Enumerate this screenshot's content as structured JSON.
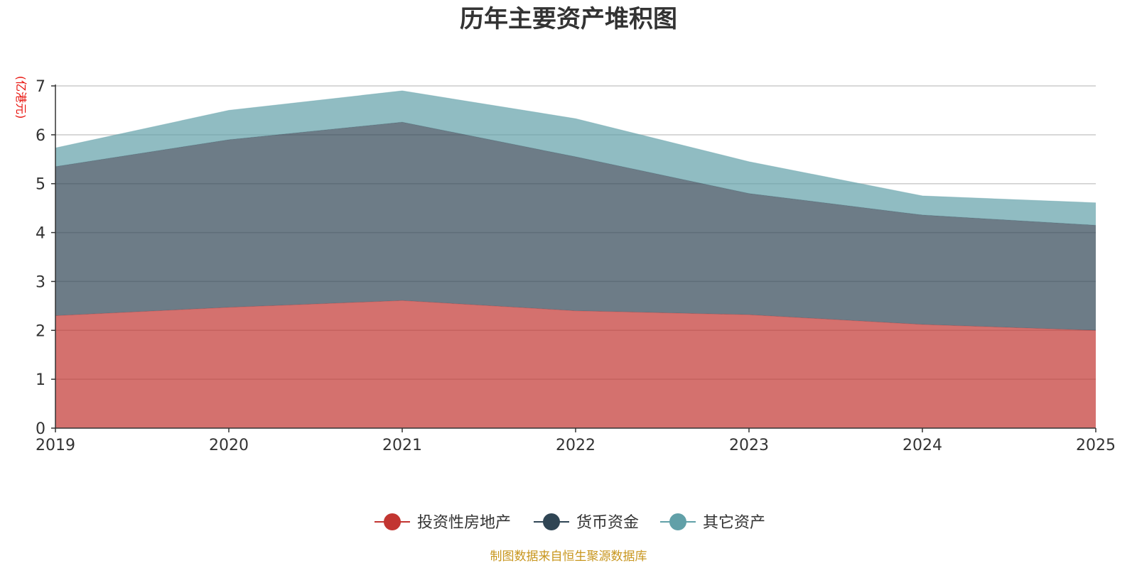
{
  "chart_data": {
    "type": "area",
    "stacked": true,
    "title": "历年主要资产堆积图",
    "unit_label": "(亿港元)",
    "categories": [
      "2019",
      "2020",
      "2021",
      "2022",
      "2023",
      "2024",
      "2025"
    ],
    "y_ticks": [
      "0",
      "1",
      "2",
      "3",
      "4",
      "5",
      "6",
      "7"
    ],
    "ylim": [
      0,
      7
    ],
    "grid": true,
    "legend_position": "bottom-center",
    "series": [
      {
        "name": "投资性房地产",
        "color": "#c23531",
        "values": [
          2.3,
          2.47,
          2.61,
          2.4,
          2.32,
          2.12,
          2.0
        ]
      },
      {
        "name": "货币资金",
        "color": "#2f4554",
        "values": [
          3.05,
          3.43,
          3.65,
          3.15,
          2.48,
          2.24,
          2.15
        ]
      },
      {
        "name": "其它资产",
        "color": "#61a0a8",
        "values": [
          0.38,
          0.6,
          0.64,
          0.78,
          0.65,
          0.39,
          0.46
        ]
      }
    ],
    "source": "制图数据来自恒生聚源数据库"
  }
}
